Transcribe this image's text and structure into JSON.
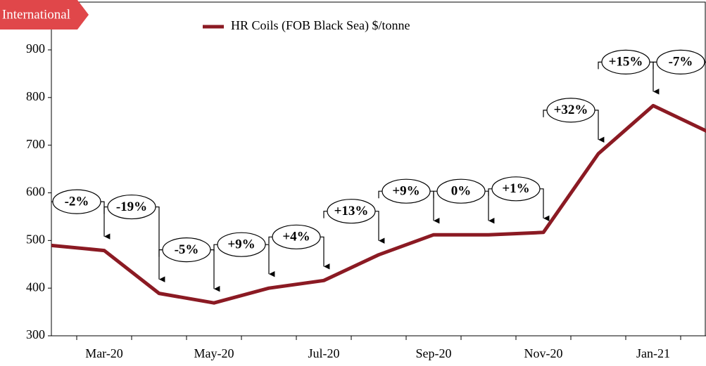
{
  "chart_data": {
    "type": "line",
    "tag": "International",
    "categories": [
      null,
      "Mar-20",
      null,
      "May-20",
      null,
      "Jul-20",
      null,
      "Sep-20",
      null,
      "Nov-20",
      null,
      "Jan-21",
      null
    ],
    "series": [
      {
        "name": "HR Coils (FOB Black Sea) $/tonne",
        "color": "#8b1a23",
        "values": [
          490,
          479,
          389,
          369,
          400,
          416,
          470,
          512,
          512,
          517,
          682,
          783,
          728
        ]
      }
    ],
    "annotations": [
      "-2%",
      "-19%",
      "-5%",
      "+9%",
      "+4%",
      "+13%",
      "+9%",
      "0%",
      "+1%",
      "+32%",
      "+15%",
      "-7%"
    ],
    "ylim": [
      300,
      900
    ],
    "yticks": [
      300,
      400,
      500,
      600,
      700,
      800,
      900
    ]
  }
}
